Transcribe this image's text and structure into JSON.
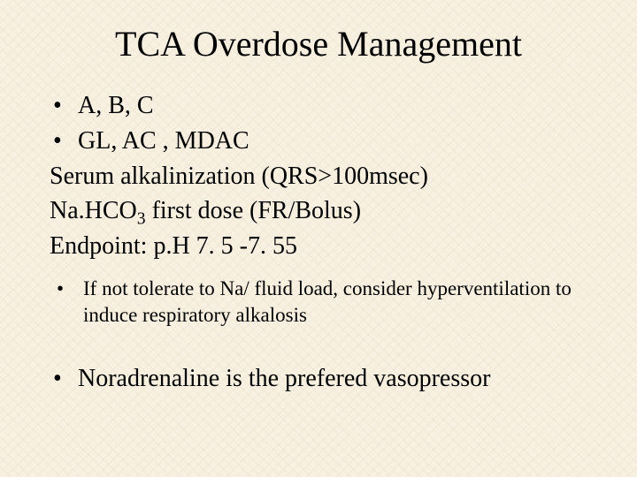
{
  "background_color": "#f8f0e0",
  "text_color": "#000000",
  "font_family": "Times New Roman",
  "title": {
    "text": "TCA Overdose Management",
    "fontsize": 40
  },
  "body": {
    "fontsize": 28,
    "bullets": [
      {
        "text": "A, B, C"
      },
      {
        "text": "GL,  AC , MDAC"
      }
    ],
    "lines": [
      "Serum alkalinization (QRS>100msec)",
      "Na.HCO",
      " first dose (FR/Bolus)",
      "Endpoint: p.H 7. 5 -7. 55"
    ],
    "subscript": "3"
  },
  "sub_bullet": {
    "fontsize": 23,
    "text": "If not tolerate to Na/ fluid load, consider hyperventilation to induce respiratory alkalosis"
  },
  "final_bullet": {
    "fontsize": 28,
    "text": "Noradrenaline is the prefered vasopressor"
  },
  "bullet_glyph": "•"
}
